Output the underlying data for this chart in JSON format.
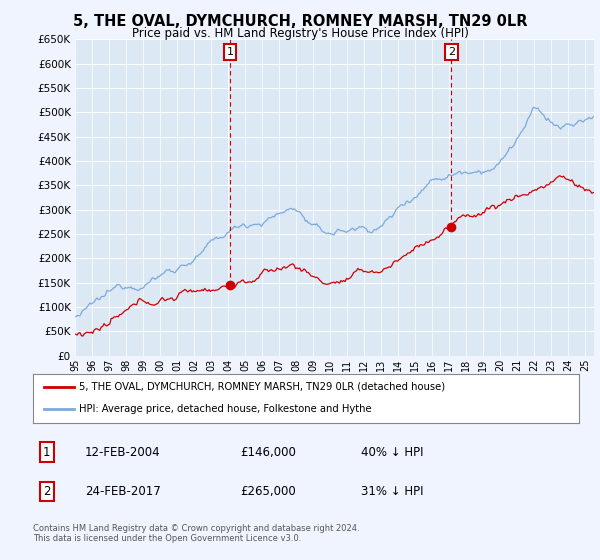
{
  "title": "5, THE OVAL, DYMCHURCH, ROMNEY MARSH, TN29 0LR",
  "subtitle": "Price paid vs. HM Land Registry's House Price Index (HPI)",
  "red_label": "5, THE OVAL, DYMCHURCH, ROMNEY MARSH, TN29 0LR (detached house)",
  "blue_label": "HPI: Average price, detached house, Folkestone and Hythe",
  "annotation1": {
    "num": "1",
    "date": "12-FEB-2004",
    "price": "£146,000",
    "pct": "40% ↓ HPI"
  },
  "annotation2": {
    "num": "2",
    "date": "24-FEB-2017",
    "price": "£265,000",
    "pct": "31% ↓ HPI"
  },
  "footer": "Contains HM Land Registry data © Crown copyright and database right 2024.\nThis data is licensed under the Open Government Licence v3.0.",
  "ylim": [
    0,
    650000
  ],
  "yticks": [
    0,
    50000,
    100000,
    150000,
    200000,
    250000,
    300000,
    350000,
    400000,
    450000,
    500000,
    550000,
    600000,
    650000
  ],
  "red_color": "#cc0000",
  "blue_color": "#7aaadd",
  "background_color": "#f0f4ff",
  "plot_bg": "#dde8f5",
  "t1": 2004.12,
  "t2": 2017.12,
  "p1": 146000,
  "p2": 265000
}
